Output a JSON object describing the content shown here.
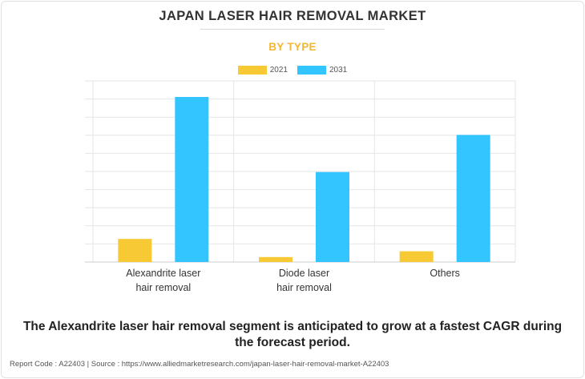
{
  "title": "JAPAN LASER HAIR REMOVAL MARKET",
  "subtitle": "BY TYPE",
  "caption_line1": "The Alexandrite laser hair removal segment is anticipated to grow at a fastest CAGR during",
  "caption_line2": "the forecast period.",
  "footer": "Report Code : A22403  |  Source : https://www.alliedmarketresearch.com/japan-laser-hair-removal-market-A22403",
  "chart_data": {
    "type": "bar",
    "categories": [
      [
        "Alexandrite laser",
        "hair removal"
      ],
      [
        "Diode laser",
        "hair removal"
      ],
      [
        "Others"
      ]
    ],
    "series": [
      {
        "name": "2021",
        "color": "#f7c935",
        "values": [
          14,
          3,
          6.5
        ]
      },
      {
        "name": "2031",
        "color": "#33c5ff",
        "values": [
          100,
          54.5,
          77
        ]
      }
    ],
    "ylim": [
      0,
      100
    ],
    "grid": true,
    "legend": "top-center"
  }
}
